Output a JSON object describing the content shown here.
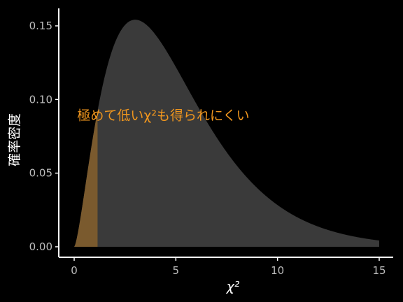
{
  "chart_data": {
    "type": "area",
    "distribution": "chi-square",
    "df": 5,
    "xlabel": "χ²",
    "ylabel": "確率密度",
    "xlim": [
      0,
      15
    ],
    "ylim": [
      0,
      0.155
    ],
    "x_ticks": [
      0,
      5,
      10,
      15
    ],
    "y_ticks": [
      0.0,
      0.05,
      0.1,
      0.15
    ],
    "x_tick_labels": [
      "0",
      "5",
      "10",
      "15"
    ],
    "y_tick_labels": [
      "0.00",
      "0.05",
      "0.10",
      "0.15"
    ],
    "series": [
      {
        "role": "density",
        "x_range": [
          0,
          15
        ],
        "color": "#3a3a3a"
      },
      {
        "role": "lower-tail",
        "x_range": [
          0,
          1.15
        ],
        "color": "#7a5a2e"
      }
    ],
    "annotations": [
      {
        "text": "極めて低いχ²も得られにくい",
        "x": 0.15,
        "y": 0.09,
        "color": "#f0961e"
      }
    ],
    "grid": false,
    "background": "#000000",
    "axis_color": "#ffffff"
  }
}
